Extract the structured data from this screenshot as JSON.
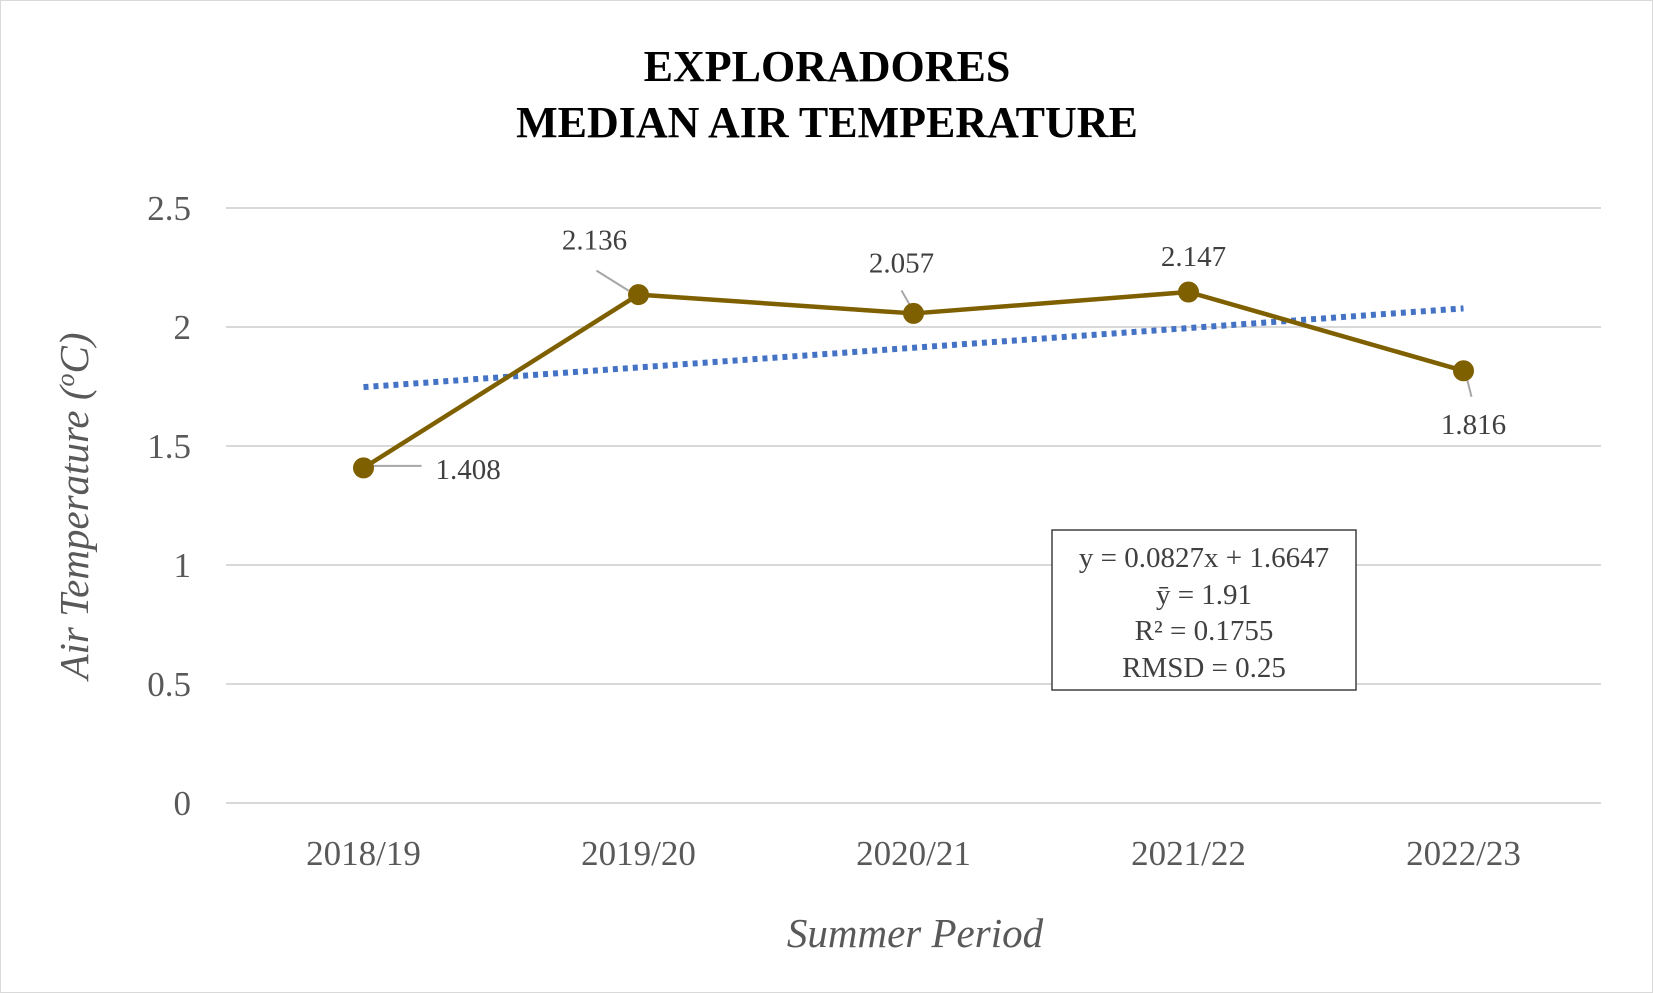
{
  "chart_data": {
    "type": "line",
    "title": [
      "EXPLORADORES",
      "MEDIAN AIR TEMPERATURE"
    ],
    "xlabel": "Summer Period",
    "ylabel_main": "Air Temperature (",
    "ylabel_sup": "o",
    "ylabel_end": "C)",
    "categories": [
      "2018/19",
      "2019/20",
      "2020/21",
      "2021/22",
      "2022/23"
    ],
    "series": [
      {
        "values": [
          1.408,
          2.136,
          2.057,
          2.147,
          1.816
        ],
        "color": "#7f6000"
      }
    ],
    "data_labels": [
      "1.408",
      "2.136",
      "2.057",
      "2.147",
      "1.816"
    ],
    "trendline": {
      "type": "linear",
      "slope": 0.0827,
      "intercept": 1.6647,
      "color": "#4472c4",
      "style": "dotted"
    },
    "ylim": [
      0,
      2.5
    ],
    "yticks": [
      "0",
      "0.5",
      "1",
      "1.5",
      "2",
      "2.5"
    ],
    "grid": true,
    "legend": "none",
    "gridline_color": "#d9d9d9",
    "stats_box": [
      "y = 0.0827x + 1.6647",
      "ȳ = 1.91",
      "R² = 0.1755",
      "RMSD = 0.25"
    ]
  }
}
